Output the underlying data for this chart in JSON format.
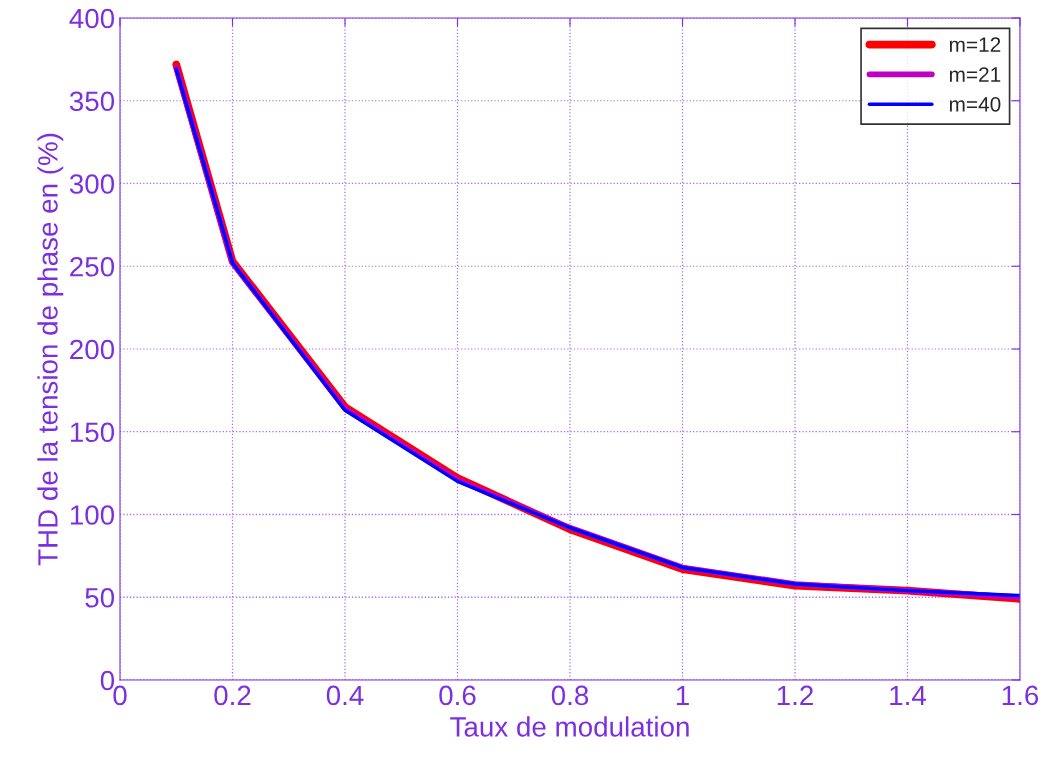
{
  "chart_data": {
    "type": "line",
    "xlabel": "Taux de modulation",
    "ylabel": "THD de la tension de phase en (%)",
    "x": [
      0.1,
      0.2,
      0.4,
      0.6,
      0.8,
      1.0,
      1.2,
      1.4,
      1.6
    ],
    "series": [
      {
        "name": "m=12",
        "color": "#ff0000",
        "values": [
          372,
          253,
          165,
          122,
          91,
          67,
          57,
          54,
          49
        ]
      },
      {
        "name": "m=21",
        "color": "#c000c0",
        "values": [
          370,
          252,
          164,
          121,
          92,
          68,
          58,
          54,
          50
        ]
      },
      {
        "name": "m=40",
        "color": "#0000ff",
        "values": [
          369,
          252,
          163,
          120,
          92,
          68,
          58,
          54,
          51
        ]
      }
    ],
    "xlim": [
      0,
      1.6
    ],
    "xticks": [
      0,
      0.2,
      0.4,
      0.6,
      0.8,
      1,
      1.2,
      1.4,
      1.6
    ],
    "ylim": [
      0,
      400
    ],
    "yticks": [
      0,
      50,
      100,
      150,
      200,
      250,
      300,
      350,
      400
    ],
    "grid": true,
    "legend": "top right",
    "line_style": "solid",
    "marker": "none"
  }
}
